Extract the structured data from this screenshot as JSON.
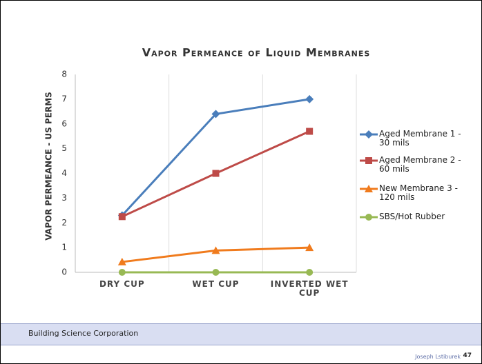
{
  "chart_data": {
    "type": "line",
    "title": "Vapor Permeance of Liquid Membranes",
    "y_label": "VAPOR PERMEANCE - US PERMS",
    "categories": [
      "DRY CUP",
      "WET CUP",
      "INVERTED WET CUP"
    ],
    "series": [
      {
        "name": "Aged Membrane 1 - 30 mils",
        "color": "#4a7ebb",
        "marker": "diamond",
        "values": [
          2.3,
          6.4,
          7.0
        ]
      },
      {
        "name": "Aged Membrane 2 - 60 mils",
        "color": "#be4b48",
        "marker": "square",
        "values": [
          2.25,
          4.0,
          5.7
        ]
      },
      {
        "name": "New Membrane 3 - 120 mils",
        "color": "#f07b1d",
        "marker": "triangle",
        "values": [
          0.42,
          0.88,
          1.0
        ]
      },
      {
        "name": "SBS/Hot Rubber",
        "color": "#98b954",
        "marker": "circle",
        "values": [
          0,
          0,
          0
        ]
      }
    ],
    "ylim": [
      0,
      8
    ],
    "yticks": [
      0,
      1,
      2,
      3,
      4,
      5,
      6,
      7,
      8
    ],
    "grid": "x",
    "legend": "right"
  },
  "footer": {
    "organization": "Building Science Corporation",
    "author": "Joseph Lstiburek",
    "page": "47"
  }
}
